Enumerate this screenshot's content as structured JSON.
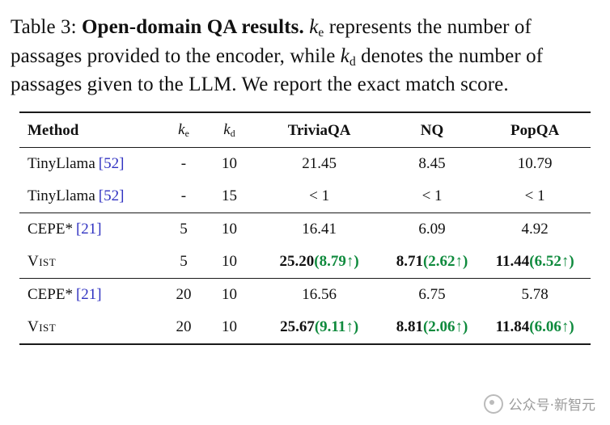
{
  "colors": {
    "delta_green": "#0f8a3d",
    "citation_blue": "#3032c1",
    "rule_black": "#1a1a1a"
  },
  "caption": {
    "prefix": "Table 3: ",
    "title": "Open-domain QA results.",
    "k1": "k",
    "k1_sub": "e",
    "seg2": " represents the number of passages provided to the encoder, while ",
    "k2": "k",
    "k2_sub": "d",
    "seg3": " denotes the number of passages given to the LLM. We report the exact match score."
  },
  "table": {
    "headers": {
      "method": "Method",
      "ke_k": "k",
      "ke_sub": "e",
      "kd_k": "k",
      "kd_sub": "d",
      "triviaqa": "TriviaQA",
      "nq": "NQ",
      "popqa": "PopQA"
    },
    "rows": [
      {
        "method": "TinyLlama",
        "cite": "[52]",
        "ke": "-",
        "kd": "10",
        "trivia": "21.45",
        "trivia_d": "",
        "nq": "8.45",
        "nq_d": "",
        "pop": "10.79",
        "pop_d": ""
      },
      {
        "method": "TinyLlama",
        "cite": "[52]",
        "ke": "-",
        "kd": "15",
        "trivia": "< 1",
        "trivia_d": "",
        "nq": "< 1",
        "nq_d": "",
        "pop": "< 1",
        "pop_d": ""
      },
      {
        "method": "CEPE*",
        "cite": "[21]",
        "ke": "5",
        "kd": "10",
        "trivia": "16.41",
        "trivia_d": "",
        "nq": "6.09",
        "nq_d": "",
        "pop": "4.92",
        "pop_d": ""
      },
      {
        "method": "Vist",
        "cite": "",
        "ke": "5",
        "kd": "10",
        "trivia": "25.20",
        "trivia_d": "(8.79↑)",
        "nq": "8.71",
        "nq_d": "(2.62↑)",
        "pop": "11.44",
        "pop_d": "(6.52↑)"
      },
      {
        "method": "CEPE*",
        "cite": "[21]",
        "ke": "20",
        "kd": "10",
        "trivia": "16.56",
        "trivia_d": "",
        "nq": "6.75",
        "nq_d": "",
        "pop": "5.78",
        "pop_d": ""
      },
      {
        "method": "Vist",
        "cite": "",
        "ke": "20",
        "kd": "10",
        "trivia": "25.67",
        "trivia_d": "(9.11↑)",
        "nq": "8.81",
        "nq_d": "(2.06↑)",
        "pop": "11.84",
        "pop_d": "(6.06↑)"
      }
    ]
  },
  "watermark": {
    "text": "公众号·新智元"
  }
}
